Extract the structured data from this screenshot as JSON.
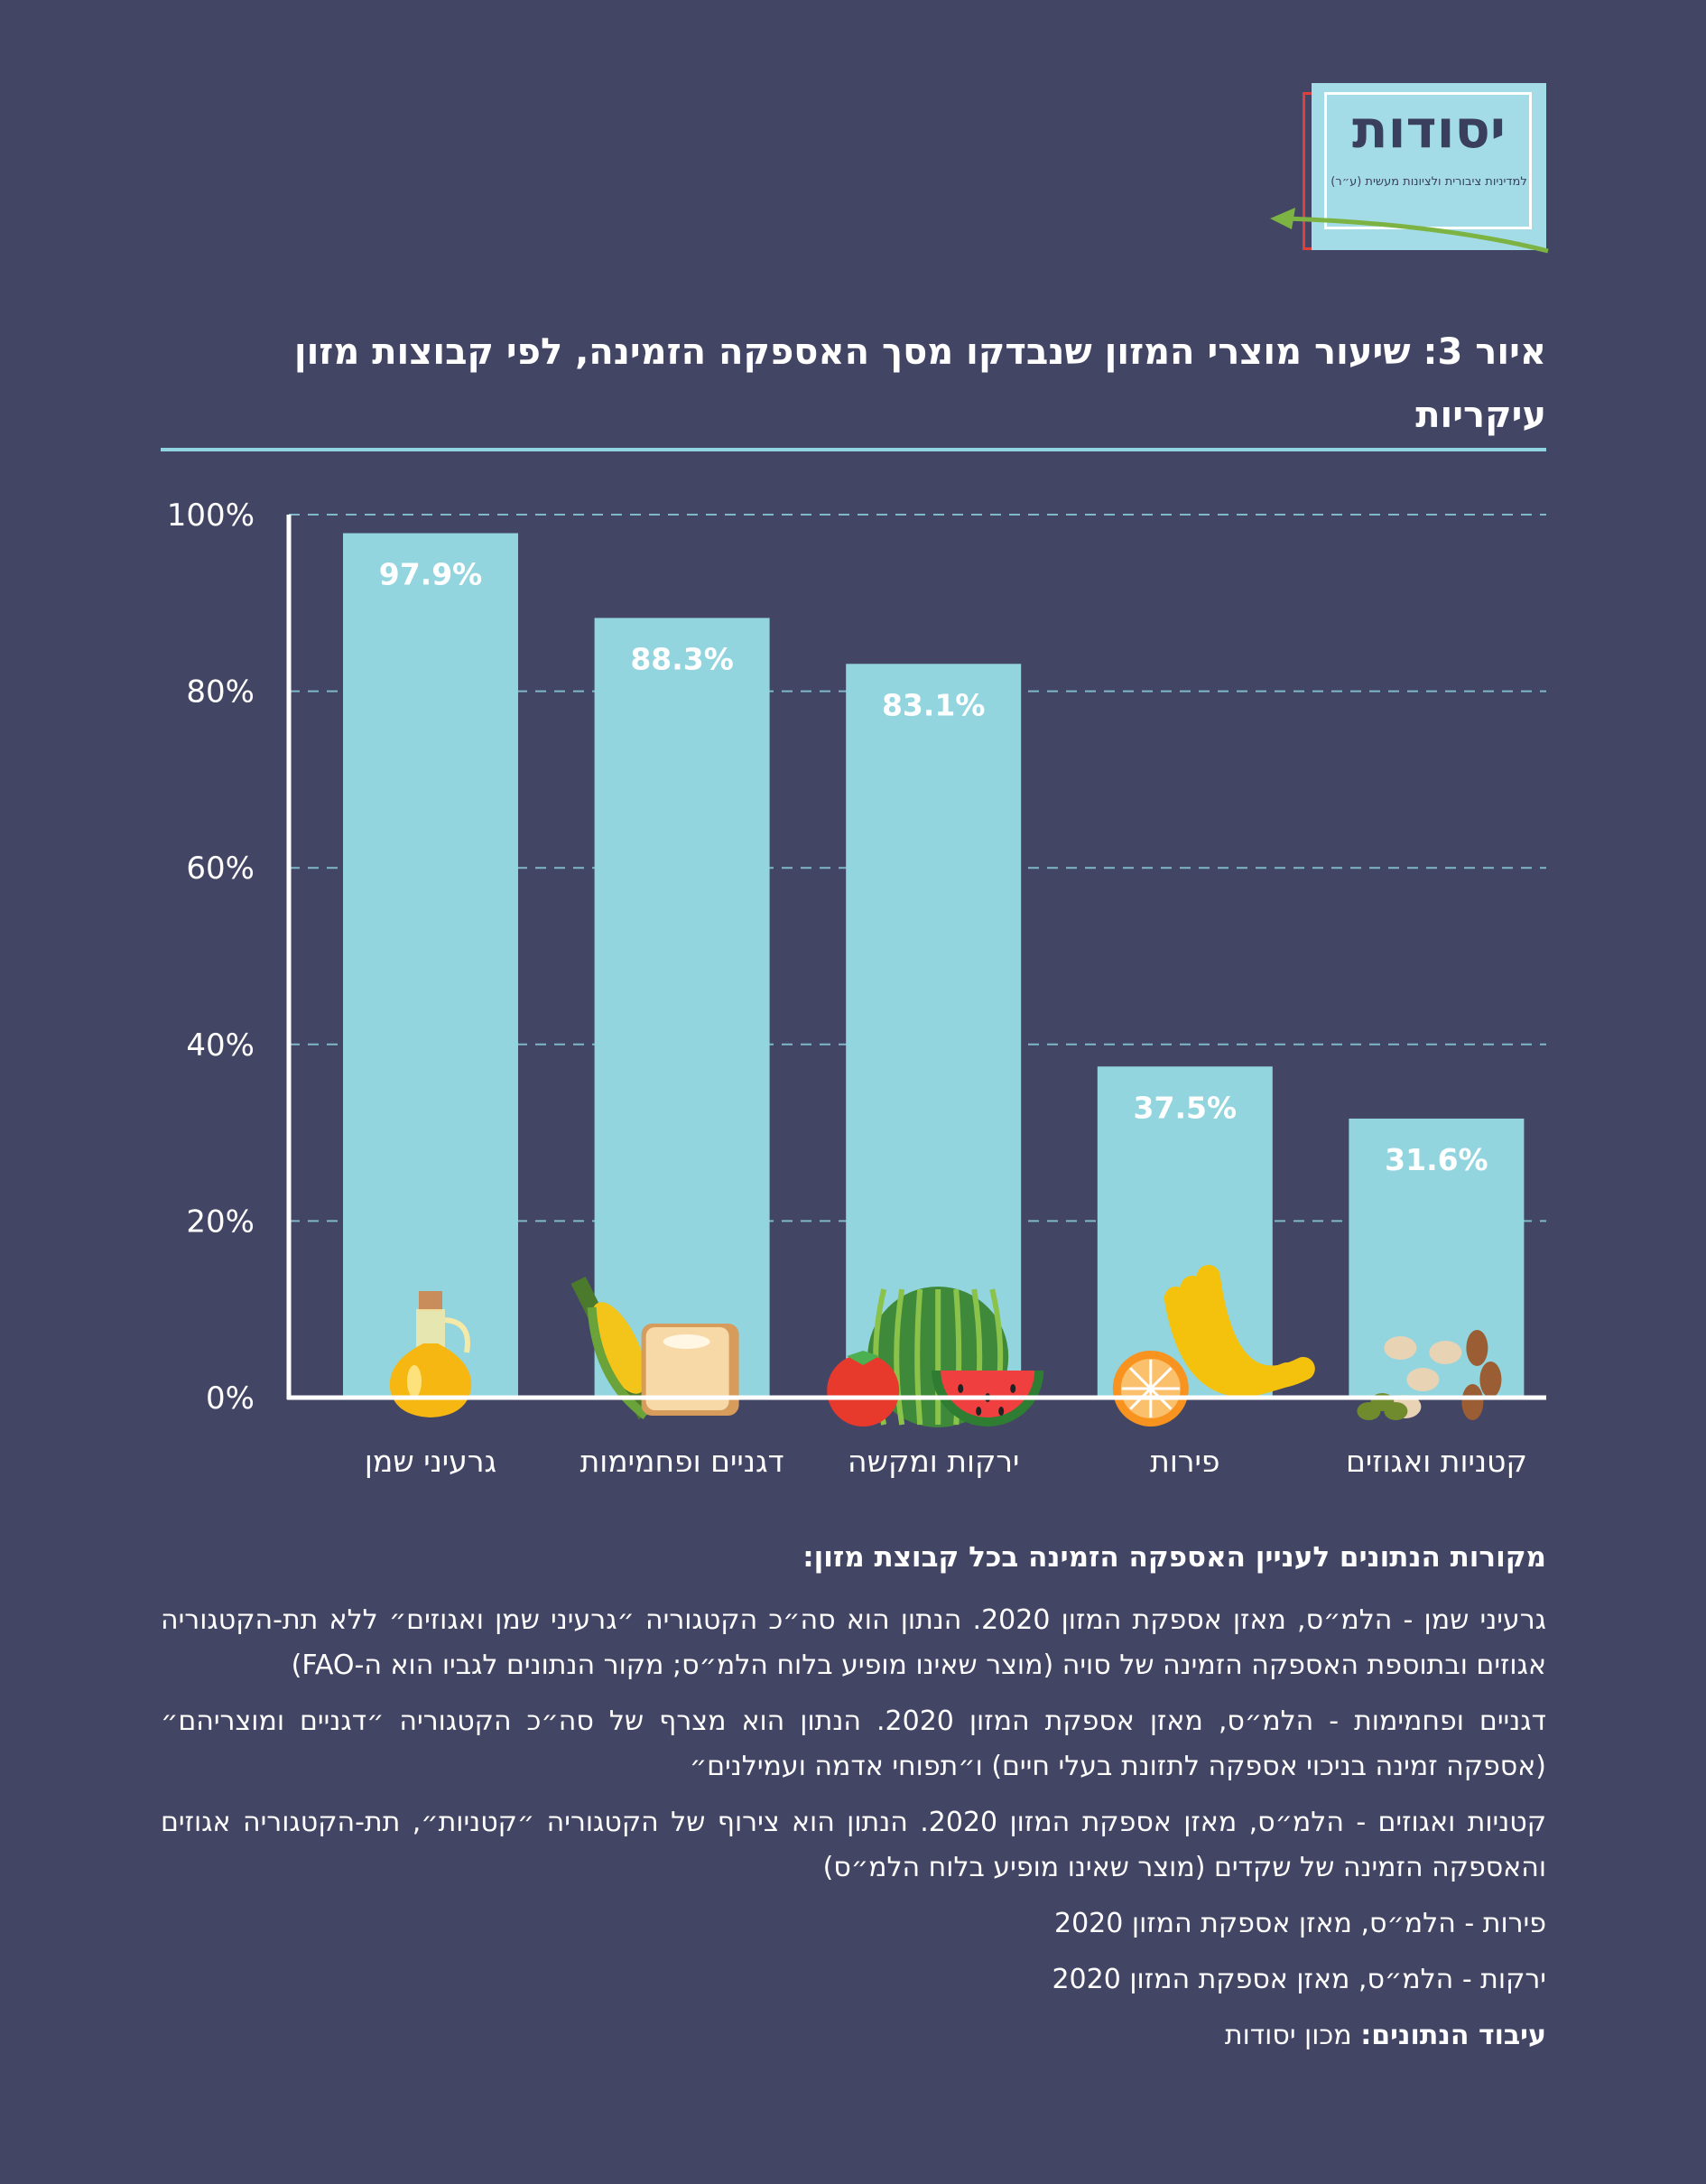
{
  "logo": {
    "name": "יסודות",
    "tagline": "למדיניות ציבורית ולציונות מעשית (ע״ר)"
  },
  "title": "איור 3: שיעור מוצרי המזון שנבדקו מסך האספקה הזמינה, לפי קבוצות מזון עיקריות",
  "colors": {
    "background": "#434564",
    "bar": "#92d5df",
    "accent": "#8fd4e0"
  },
  "chart_data": {
    "type": "bar",
    "categories": [
      "גרעיני שמן",
      "דגניים ופחמימות",
      "ירקות ומקשה",
      "פירות",
      "קטניות ואגוזים"
    ],
    "values": [
      97.9,
      88.3,
      83.1,
      37.5,
      31.6
    ],
    "value_labels": [
      "97.9%",
      "88.3%",
      "83.1%",
      "37.5%",
      "31.6%"
    ],
    "icons": [
      "oil-bottle-icon",
      "bread-corn-icon",
      "watermelon-tomato-icon",
      "banana-orange-icon",
      "nuts-icon"
    ],
    "yticks": [
      "0%",
      "20%",
      "40%",
      "60%",
      "80%",
      "100%"
    ],
    "ylim": [
      0,
      100
    ],
    "grid": true
  },
  "notes": {
    "heading": "מקורות הנתונים לעניין האספקה הזמינה בכל קבוצת מזון:",
    "items": [
      "גרעיני שמן - הלמ״ס, מאזן אספקת המזון 2020. הנתון הוא סה״כ הקטגוריה ״גרעיני שמן ואגוזים״ ללא תת-הקטגוריה אגוזים ובתוספת האספקה הזמינה של סויה (מוצר שאינו מופיע בלוח הלמ״ס; מקור הנתונים לגביו הוא ה-FAO)",
      "דגניים ופחמימות - הלמ״ס, מאזן אספקת המזון 2020. הנתון הוא מצרף של סה״כ הקטגוריה ״דגניים ומוצריהם״ (אספקה זמינה בניכוי אספקה לתזונת בעלי חיים) ו״תפוחי אדמה ועמילנים״",
      "קטניות ואגוזים - הלמ״ס, מאזן אספקת המזון 2020. הנתון הוא צירוף של הקטגוריה ״קטניות״, תת-הקטגוריה אגוזים והאספקה הזמינה של שקדים (מוצר שאינו מופיע בלוח הלמ״ס)",
      "פירות - הלמ״ס, מאזן אספקת המזון 2020",
      "ירקות - הלמ״ס, מאזן אספקת המזון 2020"
    ],
    "credit_label": "עיבוד הנתונים:",
    "credit_value": "מכון יסודות"
  }
}
